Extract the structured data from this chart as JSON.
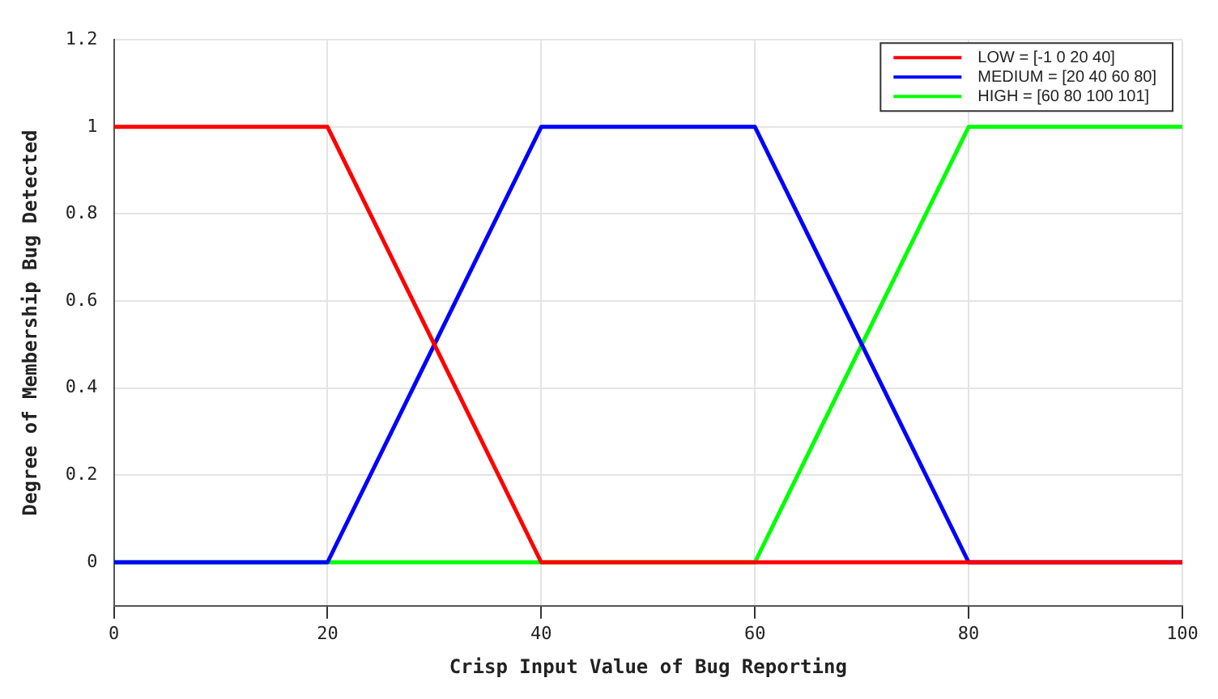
{
  "chart_data": {
    "type": "line",
    "xlabel": "Crisp Input Value of Bug Reporting",
    "ylabel": "Degree of Membership Bug Detected",
    "series": [
      {
        "name": "LOW = [-1 0 20 40]",
        "color": "#ff0000",
        "x": [
          0,
          20,
          40,
          100
        ],
        "values": [
          1,
          1,
          0,
          0
        ]
      },
      {
        "name": "MEDIUM = [20 40 60 80]",
        "color": "#0000ff",
        "x": [
          0,
          20,
          40,
          60,
          80,
          100
        ],
        "values": [
          0,
          0,
          1,
          1,
          0,
          0
        ]
      },
      {
        "name": "HIGH = [60 80 100 101]",
        "color": "#00ff00",
        "x": [
          0,
          60,
          80,
          100
        ],
        "values": [
          0,
          0,
          1,
          1
        ]
      }
    ],
    "xlim": [
      0,
      100
    ],
    "xticks": [
      0,
      20,
      40,
      60,
      80,
      100
    ],
    "ylim": [
      -0.1,
      1.2
    ],
    "yticks": [
      0,
      0.2,
      0.4,
      0.6,
      0.8,
      1,
      1.2
    ],
    "grid": true,
    "legend": "top right",
    "marker": "none",
    "line_style": "solid"
  }
}
